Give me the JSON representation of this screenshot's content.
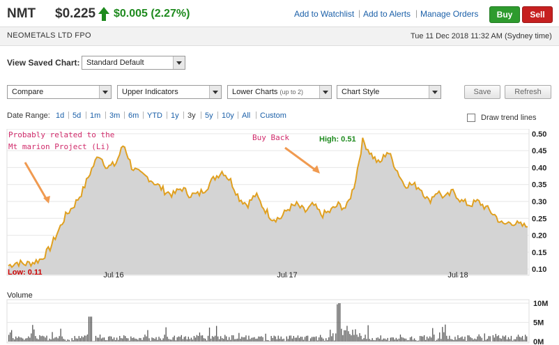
{
  "header": {
    "ticker": "NMT",
    "price": "$0.225",
    "change": "$0.005 (2.27%)",
    "links": [
      "Add to Watchlist",
      "Add to Alerts",
      "Manage Orders"
    ],
    "buy_label": "Buy",
    "sell_label": "Sell",
    "company": "NEOMETALS LTD FPO",
    "timestamp": "Tue 11 Dec 2018 11:32 AM (Sydney time)"
  },
  "controls": {
    "saved_chart_label": "View Saved Chart:",
    "saved_chart_value": "Standard Default",
    "compare": "Compare",
    "upper_indicators": "Upper Indicators",
    "lower_charts": "Lower Charts",
    "lower_charts_hint": "(up to 2)",
    "chart_style": "Chart Style",
    "save_label": "Save",
    "refresh_label": "Refresh",
    "date_range_label": "Date Range:",
    "date_ranges": [
      "1d",
      "5d",
      "1m",
      "3m",
      "6m",
      "YTD",
      "1y",
      "3y",
      "5y",
      "10y",
      "All",
      "Custom"
    ],
    "date_range_selected": "3y",
    "trend_lines_label": "Draw trend lines"
  },
  "colors": {
    "price_line": "#e0a020",
    "area_fill": "#d4d4d4",
    "accent_green": "#1e8a1e",
    "annotation": "#d02a6a",
    "low_label": "#cc0000"
  },
  "chart_data": {
    "type": "area",
    "y_ticks": [
      "0.50",
      "0.45",
      "0.40",
      "0.35",
      "0.30",
      "0.25",
      "0.20",
      "0.15",
      "0.10"
    ],
    "ylim": [
      0.09,
      0.51
    ],
    "x_ticks": [
      "Jul 16",
      "Jul 17",
      "Jul 18"
    ],
    "high_label": "High: 0.51",
    "low_label": "Low: 0.11",
    "annotations": [
      {
        "text": "Probably related to the",
        "text2": "Mt marion Project (Li)"
      },
      {
        "text": "Buy Back"
      }
    ],
    "series": [
      {
        "values": [
          0.11,
          0.12,
          0.115,
          0.12,
          0.13,
          0.16,
          0.21,
          0.26,
          0.29,
          0.33,
          0.39,
          0.44,
          0.4,
          0.41,
          0.47,
          0.4,
          0.38,
          0.37,
          0.35,
          0.33,
          0.32,
          0.34,
          0.32,
          0.32,
          0.34,
          0.37,
          0.39,
          0.36,
          0.31,
          0.29,
          0.32,
          0.28,
          0.25,
          0.25,
          0.28,
          0.29,
          0.27,
          0.29,
          0.26,
          0.27,
          0.29,
          0.28,
          0.35,
          0.48,
          0.44,
          0.41,
          0.45,
          0.4,
          0.35,
          0.35,
          0.34,
          0.3,
          0.33,
          0.31,
          0.33,
          0.3,
          0.29,
          0.3,
          0.28,
          0.26,
          0.23,
          0.24,
          0.23,
          0.225
        ]
      }
    ],
    "volume": {
      "y_ticks": [
        "10M",
        "5M",
        "0M"
      ],
      "ylim": [
        0,
        10
      ]
    }
  }
}
